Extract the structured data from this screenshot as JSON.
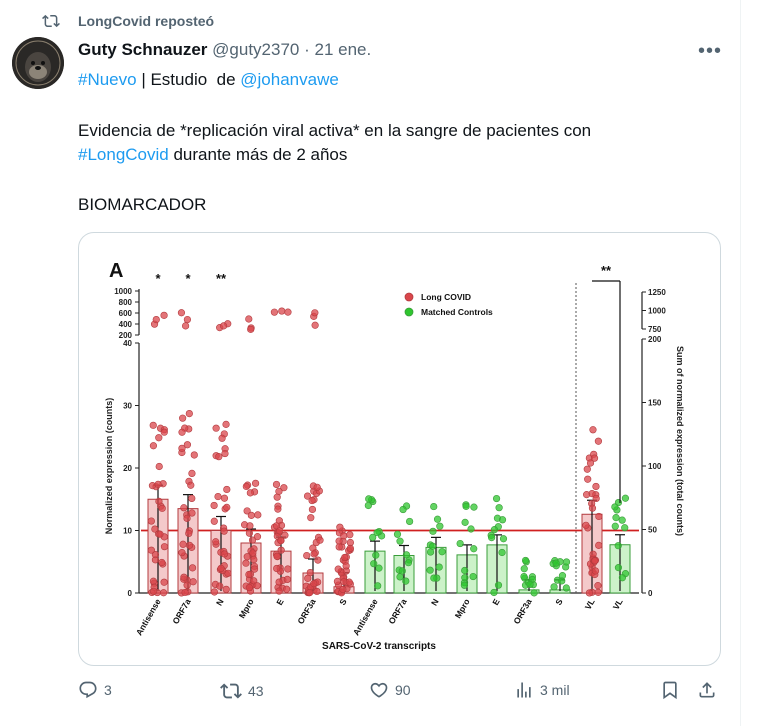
{
  "repost": {
    "text": "LongCovid reposteó"
  },
  "post": {
    "author": "Guty Schnauzer",
    "handle": "@guty2370",
    "sep": "·",
    "date": "21 ene.",
    "line1": {
      "hashtag": "#Nuevo",
      "mid": " | Estudio  de ",
      "mention": "@johanvawe"
    },
    "line2": "Evidencia de *replicación viral activa* en la sangre de pacientes con",
    "line3": {
      "hashtag": "#LongCovid",
      "rest": " durante más de 2 años"
    },
    "line4": "BIOMARCADOR"
  },
  "actions": {
    "replies": "3",
    "reposts": "43",
    "likes": "90",
    "views": "3 mil"
  },
  "colors": {
    "link": "#1d9bf0",
    "muted": "#536471",
    "long_covid": "#d9464b",
    "controls": "#2fc52f",
    "threshold": "#d02020"
  },
  "chart_data": {
    "type": "bar",
    "panel": "A",
    "xlabel": "SARS-CoV-2 transcripts",
    "ylabel": "Normalized expression (counts)",
    "ylabel_right": "Sum of normalized expression (total counts)",
    "categories": [
      "Antisense",
      "ORF7a",
      "N",
      "Mpro",
      "E",
      "ORF3a",
      "S",
      "Antisense",
      "ORF7a",
      "N",
      "Mpro",
      "E",
      "ORF3a",
      "S",
      "VL",
      "VL"
    ],
    "groups": [
      "Long COVID",
      "Long COVID",
      "Long COVID",
      "Long COVID",
      "Long COVID",
      "Long COVID",
      "Long COVID",
      "Matched Controls",
      "Matched Controls",
      "Matched Controls",
      "Matched Controls",
      "Matched Controls",
      "Matched Controls",
      "Matched Controls",
      "Long COVID",
      "Matched Controls"
    ],
    "series": [
      {
        "name": "Long COVID",
        "values": [
          15,
          13.5,
          10,
          8,
          6.7,
          3.2,
          1,
          null,
          null,
          null,
          null,
          null,
          null,
          null,
          62,
          null
        ]
      },
      {
        "name": "Matched Controls",
        "values": [
          null,
          null,
          null,
          null,
          null,
          null,
          null,
          6.7,
          6,
          7.3,
          6.1,
          7.7,
          0.5,
          0.5,
          null,
          38
        ]
      }
    ],
    "y_ticks_left": [
      "0",
      "10",
      "20",
      "30",
      "40",
      "200",
      "400",
      "600",
      "800",
      "1000"
    ],
    "y_ticks_right": [
      "0",
      "50",
      "100",
      "150",
      "200",
      "750",
      "1000",
      "1250"
    ],
    "ylim": [
      0,
      1000
    ],
    "threshold": 10,
    "significance": [
      {
        "category": "Antisense",
        "mark": "*"
      },
      {
        "category": "ORF7a",
        "mark": "*"
      },
      {
        "category": "N",
        "mark": "**"
      },
      {
        "category": "VL",
        "mark": "**"
      }
    ],
    "legend": [
      "Long COVID",
      "Matched Controls"
    ],
    "legend_position": "top-right"
  }
}
